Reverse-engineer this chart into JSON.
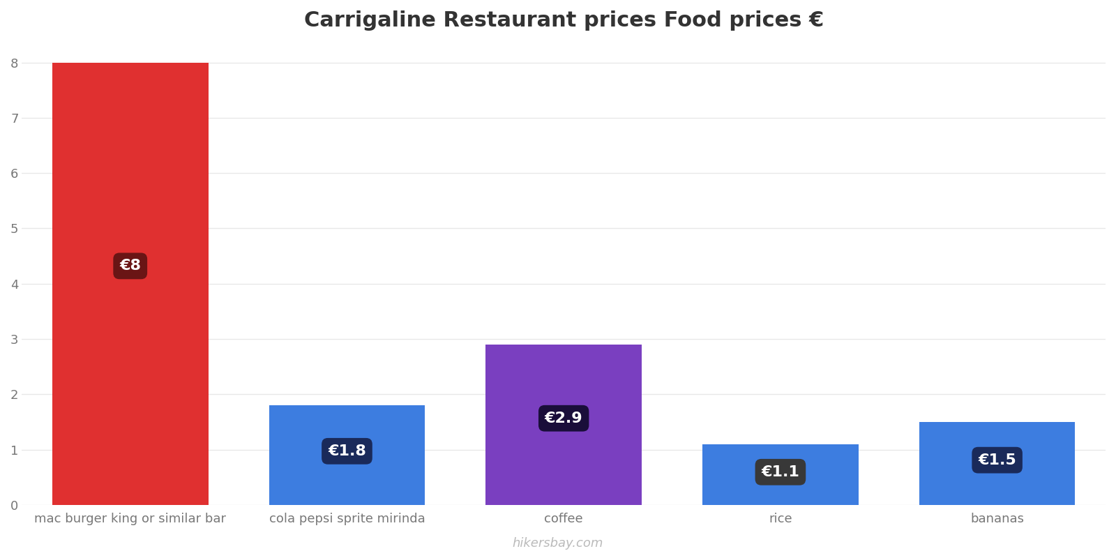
{
  "title": "Carrigaline Restaurant prices Food prices €",
  "categories": [
    "mac burger king or similar bar",
    "cola pepsi sprite mirinda",
    "coffee",
    "rice",
    "bananas"
  ],
  "values": [
    8.0,
    1.8,
    2.9,
    1.1,
    1.5
  ],
  "bar_colors": [
    "#e03030",
    "#3d7de0",
    "#7a3fc0",
    "#3d7de0",
    "#3d7de0"
  ],
  "label_texts": [
    "€8",
    "€1.8",
    "€2.9",
    "€1.1",
    "€1.5"
  ],
  "label_box_colors": [
    "#6a1515",
    "#1a2a5a",
    "#1a0e3a",
    "#383838",
    "#1a2a5a"
  ],
  "ylim": [
    0,
    8.3
  ],
  "yticks": [
    0,
    1,
    2,
    3,
    4,
    5,
    6,
    7,
    8
  ],
  "background_color": "#ffffff",
  "grid_color": "#e8e8e8",
  "footer_text": "hikersbay.com",
  "title_fontsize": 22,
  "label_fontsize": 16,
  "tick_fontsize": 13,
  "footer_fontsize": 13,
  "bar_width": 0.72
}
